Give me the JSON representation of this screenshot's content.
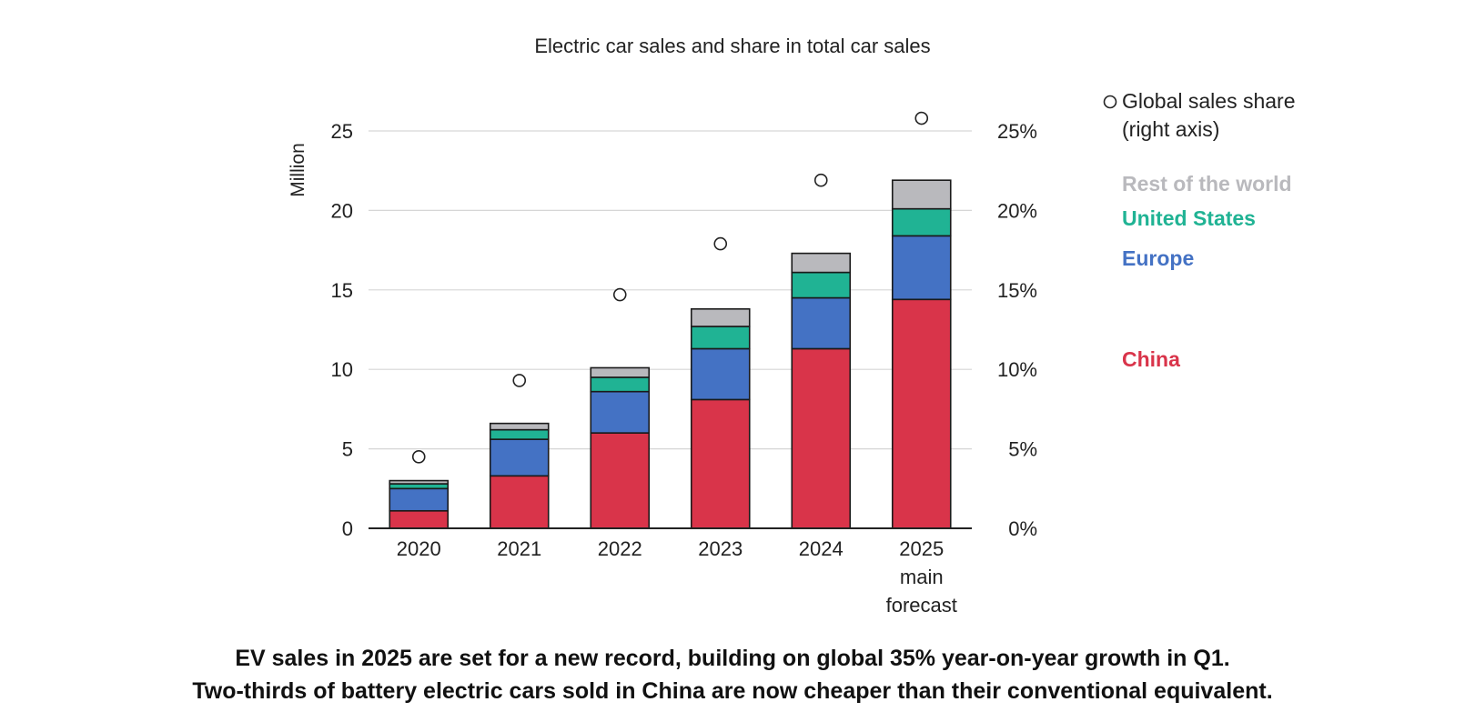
{
  "chart_data": {
    "type": "bar",
    "stacked": true,
    "title": "Electric car sales and share in total car sales",
    "ylabel": "Million",
    "ylim": [
      0,
      25
    ],
    "y_ticks": [
      0,
      5,
      10,
      15,
      20,
      25
    ],
    "y2lim": [
      0,
      25
    ],
    "y2_ticks": [
      "0%",
      "5%",
      "10%",
      "15%",
      "20%",
      "25%"
    ],
    "categories": [
      "2020",
      "2021",
      "2022",
      "2023",
      "2024",
      "2025 main forecast"
    ],
    "category_lines": [
      [
        "2020"
      ],
      [
        "2021"
      ],
      [
        "2022"
      ],
      [
        "2023"
      ],
      [
        "2024"
      ],
      [
        "2025",
        "main",
        "forecast"
      ]
    ],
    "series": [
      {
        "name": "China",
        "color": "#d9344a",
        "values": [
          1.1,
          3.3,
          6.0,
          8.1,
          11.3,
          14.4
        ]
      },
      {
        "name": "Europe",
        "color": "#4472c4",
        "values": [
          1.4,
          2.3,
          2.6,
          3.2,
          3.2,
          4.0
        ]
      },
      {
        "name": "United States",
        "color": "#20b394",
        "values": [
          0.3,
          0.6,
          0.9,
          1.4,
          1.6,
          1.7
        ]
      },
      {
        "name": "Rest of the world",
        "color": "#b9b9bd",
        "values": [
          0.2,
          0.4,
          0.6,
          1.1,
          1.2,
          1.8
        ]
      }
    ],
    "line_series": {
      "name": "Global sales share",
      "axis_note": "(right axis)",
      "axis": "right",
      "values": [
        4.5,
        9.3,
        14.7,
        17.9,
        21.9,
        25.8
      ]
    },
    "legend_order": [
      "Rest of the world",
      "United States",
      "Europe",
      "China"
    ],
    "grid": true,
    "legend": "right"
  },
  "caption": {
    "line1": "EV sales in 2025 are set for a new record, building on global 35% year-on-year growth in Q1.",
    "line2": "Two-thirds of battery electric cars sold in China are now cheaper than their conventional equivalent."
  }
}
